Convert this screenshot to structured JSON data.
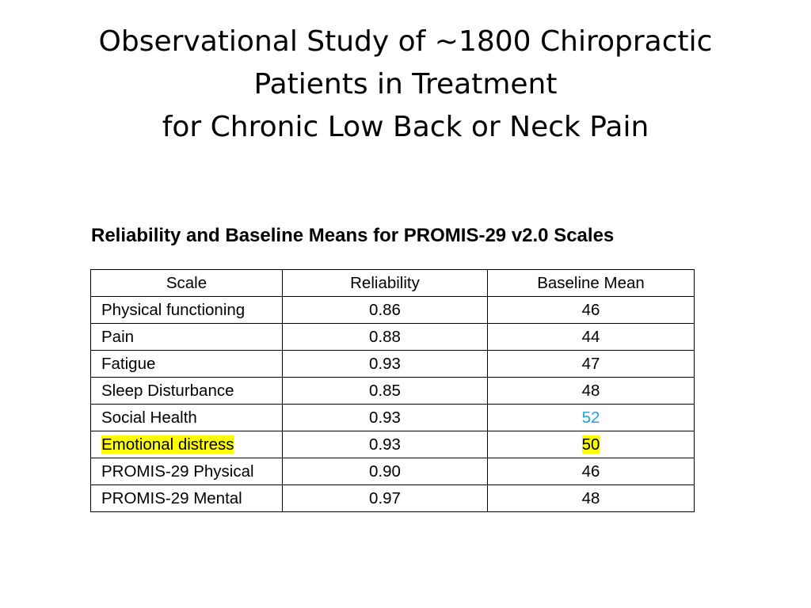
{
  "slide": {
    "title_lines": [
      "Observational Study of ~1800 Chiropractic",
      "Patients in Treatment",
      "for Chronic Low Back or Neck Pain"
    ],
    "table_caption": "Reliability and Baseline Means for PROMIS-29 v2.0 Scales"
  },
  "table": {
    "headers": [
      "Scale",
      "Reliability",
      "Baseline Mean"
    ],
    "rows": [
      {
        "scale": "Physical functioning",
        "reliability": "0.86",
        "baseline_mean": "46"
      },
      {
        "scale": "Pain",
        "reliability": "0.88",
        "baseline_mean": "44"
      },
      {
        "scale": "Fatigue",
        "reliability": "0.93",
        "baseline_mean": "47"
      },
      {
        "scale": "Sleep Disturbance",
        "reliability": "0.85",
        "baseline_mean": "48"
      },
      {
        "scale": "Social Health",
        "reliability": "0.93",
        "baseline_mean": "52"
      },
      {
        "scale": "Emotional distress",
        "reliability": "0.93",
        "baseline_mean": "50"
      },
      {
        "scale": "PROMIS-29 Physical",
        "reliability": "0.90",
        "baseline_mean": "46"
      },
      {
        "scale": "PROMIS-29 Mental",
        "reliability": "0.97",
        "baseline_mean": "48"
      }
    ]
  },
  "colors": {
    "highlight": "#ffff00",
    "accent_blue": "#1aa3dc"
  }
}
